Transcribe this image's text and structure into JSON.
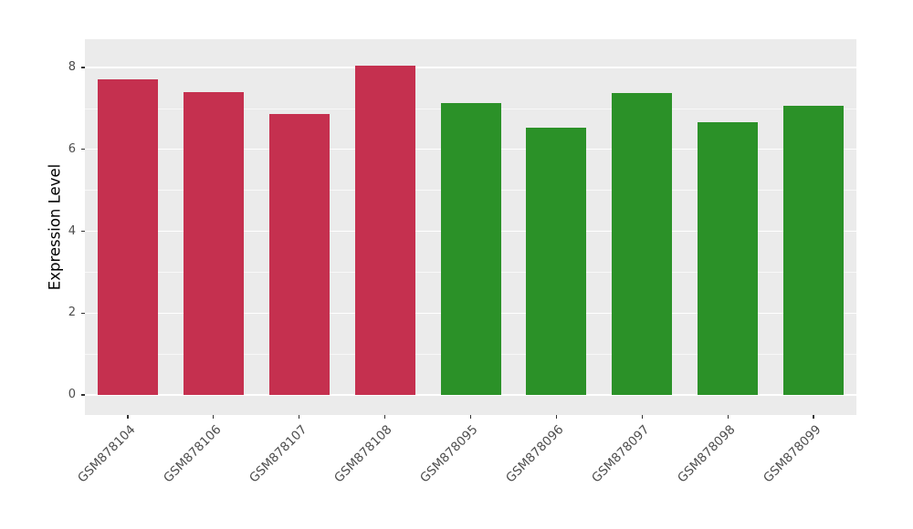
{
  "chart_data": {
    "type": "bar",
    "title": "",
    "xlabel": "",
    "ylabel": "Expression Level",
    "ylim": [
      0,
      8.7
    ],
    "yticks_major": [
      0,
      2,
      4,
      6,
      8
    ],
    "yticks_minor": [
      1,
      3,
      5,
      7
    ],
    "categories": [
      "GSM878104",
      "GSM878106",
      "GSM878107",
      "GSM878108",
      "GSM878095",
      "GSM878096",
      "GSM878097",
      "GSM878098",
      "GSM878099"
    ],
    "values": [
      7.72,
      7.4,
      6.87,
      8.04,
      7.14,
      6.53,
      7.38,
      6.67,
      7.06
    ],
    "bar_colors": [
      "#C5304F",
      "#C5304F",
      "#C5304F",
      "#C5304F",
      "#2B9128",
      "#2B9128",
      "#2B9128",
      "#2B9128",
      "#2B9128"
    ],
    "panel_background": "#EBEBEB",
    "grid_color": "#FFFFFF",
    "tick_color": "#333333",
    "tick_label_color": "#4D4D4D",
    "legend": "none",
    "grid": "on"
  }
}
